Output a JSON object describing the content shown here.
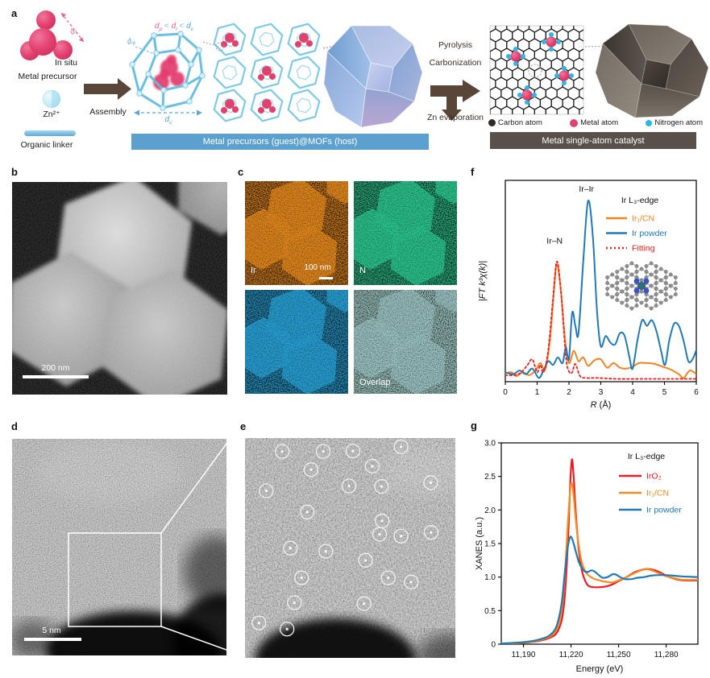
{
  "panels": {
    "a": {
      "label": "a",
      "metal_precursor": "Metal precursor",
      "zn_ion": "Zn²⁺",
      "organic_linker": "Organic linker",
      "in_situ": "In situ",
      "assembly": "Assembly",
      "size_inequality": [
        {
          "t": "d",
          "sub": "p",
          "italic": true,
          "color": "#e8608a"
        },
        {
          "t": " < ",
          "color": "#8fb9d9"
        },
        {
          "t": "d",
          "sub": "i",
          "italic": true,
          "color": "#e8608a"
        },
        {
          "t": " < ",
          "color": "#8fb9d9"
        },
        {
          "t": "d",
          "sub": "c",
          "italic": true,
          "color": "#4da3d8"
        }
      ],
      "d_pore": [
        {
          "t": "d",
          "sub": "p",
          "italic": true
        }
      ],
      "d_ion": [
        {
          "t": "d",
          "sub": "i",
          "italic": true
        }
      ],
      "d_cage": [
        {
          "t": "d",
          "sub": "c",
          "italic": true
        }
      ],
      "guest_host_banner": "Metal precursors (guest)@MOFs (host)",
      "banner_blue": "#5ba0cf",
      "banner_brown": "#57504b",
      "pyrolysis": "Pyrolysis",
      "carbonization": "Carbonization",
      "zn_evaporation": "Zn evaporation",
      "atom_legend": [
        {
          "name": "Carbon atom",
          "color": "#2d2a28"
        },
        {
          "name": "Metal atom",
          "color": "#e0416f"
        },
        {
          "name": "Nitrogen atom",
          "color": "#2bb7e8"
        }
      ],
      "sac_banner": "Metal single-atom catalyst"
    },
    "b": {
      "label": "b",
      "scale_bar": "200 nm"
    },
    "c": {
      "label": "c",
      "scale_bar": "100 nm",
      "maps": [
        {
          "name": "Ir",
          "color": "#ef8f1f"
        },
        {
          "name": "N",
          "color": "#2ecf96"
        },
        {
          "name": "",
          "color": "#2aa9e0"
        },
        {
          "name": "Overlap",
          "color": "#a8d4e4"
        }
      ]
    },
    "d": {
      "label": "d",
      "scale_bar": "5 nm"
    },
    "e": {
      "label": "e",
      "circles": [
        [
          0.177,
          0.061
        ],
        [
          0.372,
          0.061
        ],
        [
          0.513,
          0.059
        ],
        [
          0.742,
          0.04
        ],
        [
          0.314,
          0.144
        ],
        [
          0.605,
          0.128
        ],
        [
          0.494,
          0.218
        ],
        [
          0.649,
          0.22
        ],
        [
          0.883,
          0.203
        ],
        [
          0.101,
          0.24
        ],
        [
          0.296,
          0.337
        ],
        [
          0.652,
          0.377
        ],
        [
          0.64,
          0.438
        ],
        [
          0.742,
          0.446
        ],
        [
          0.885,
          0.429
        ],
        [
          0.216,
          0.501
        ],
        [
          0.384,
          0.515
        ],
        [
          0.573,
          0.556
        ],
        [
          0.269,
          0.636
        ],
        [
          0.681,
          0.636
        ],
        [
          0.79,
          0.655
        ],
        [
          0.235,
          0.749
        ],
        [
          0.566,
          0.753
        ],
        [
          0.066,
          0.841
        ],
        [
          0.2,
          0.869
        ]
      ]
    },
    "f": {
      "label": "f"
    },
    "g": {
      "label": "g"
    }
  },
  "chart_data": [
    {
      "id": "exafs",
      "type": "line",
      "legend_title": "Ir L₃-edge",
      "xlabel": "R (Å)",
      "ylabel": "|FT k³χ(k)|",
      "xlim": [
        0,
        6
      ],
      "ylim": [
        0,
        1.08
      ],
      "xticks": [
        {
          "v": 0,
          "label": "0"
        },
        {
          "v": 1,
          "label": "1"
        },
        {
          "v": 2,
          "label": "2"
        },
        {
          "v": 3,
          "label": "3"
        },
        {
          "v": 4,
          "label": "4"
        },
        {
          "v": 5,
          "label": "5"
        },
        {
          "v": 6,
          "label": "6"
        }
      ],
      "yticks": [],
      "annotations": [
        {
          "text": "Ir–N",
          "x": 1.55,
          "y": 0.74
        },
        {
          "text": "Ir–Ir",
          "x": 2.55,
          "y": 1.02
        }
      ],
      "series": [
        {
          "name": "Ir₁/CN",
          "color": "#f58220",
          "dash": null,
          "width": 2,
          "points": [
            [
              0,
              0.045
            ],
            [
              0.2,
              0.05
            ],
            [
              0.35,
              0.03
            ],
            [
              0.55,
              0.05
            ],
            [
              0.75,
              0.035
            ],
            [
              0.95,
              0.06
            ],
            [
              1.1,
              0.1
            ],
            [
              1.25,
              0.065
            ],
            [
              1.4,
              0.22
            ],
            [
              1.52,
              0.47
            ],
            [
              1.62,
              0.63
            ],
            [
              1.74,
              0.5
            ],
            [
              1.88,
              0.22
            ],
            [
              2.0,
              0.1
            ],
            [
              2.15,
              0.165
            ],
            [
              2.3,
              0.11
            ],
            [
              2.45,
              0.13
            ],
            [
              2.6,
              0.085
            ],
            [
              2.8,
              0.115
            ],
            [
              3.0,
              0.12
            ],
            [
              3.2,
              0.075
            ],
            [
              3.4,
              0.1
            ],
            [
              3.6,
              0.075
            ],
            [
              3.8,
              0.07
            ],
            [
              4.0,
              0.08
            ],
            [
              4.2,
              0.1
            ],
            [
              4.45,
              0.1
            ],
            [
              4.7,
              0.095
            ],
            [
              4.95,
              0.08
            ],
            [
              5.2,
              0.065
            ],
            [
              5.45,
              0.04
            ],
            [
              5.6,
              0.02
            ],
            [
              5.8,
              0.06
            ],
            [
              6,
              0.04
            ]
          ]
        },
        {
          "name": "Ir powder",
          "color": "#2179b5",
          "dash": null,
          "width": 2,
          "points": [
            [
              0,
              0.05
            ],
            [
              0.25,
              0.04
            ],
            [
              0.45,
              0.06
            ],
            [
              0.65,
              0.04
            ],
            [
              0.85,
              0.07
            ],
            [
              1.05,
              0.02
            ],
            [
              1.2,
              0.06
            ],
            [
              1.35,
              0.11
            ],
            [
              1.5,
              0.09
            ],
            [
              1.65,
              0.13
            ],
            [
              1.8,
              0.1
            ],
            [
              1.9,
              0.185
            ],
            [
              2.0,
              0.12
            ],
            [
              2.1,
              0.37
            ],
            [
              2.2,
              0.3
            ],
            [
              2.3,
              0.26
            ],
            [
              2.45,
              0.65
            ],
            [
              2.6,
              0.97
            ],
            [
              2.75,
              0.78
            ],
            [
              2.88,
              0.38
            ],
            [
              3.0,
              0.19
            ],
            [
              3.15,
              0.245
            ],
            [
              3.3,
              0.21
            ],
            [
              3.45,
              0.2
            ],
            [
              3.6,
              0.26
            ],
            [
              3.75,
              0.245
            ],
            [
              3.9,
              0.13
            ],
            [
              4.0,
              0.07
            ],
            [
              4.15,
              0.22
            ],
            [
              4.3,
              0.33
            ],
            [
              4.45,
              0.3
            ],
            [
              4.6,
              0.33
            ],
            [
              4.75,
              0.27
            ],
            [
              4.9,
              0.16
            ],
            [
              5.02,
              0.09
            ],
            [
              5.15,
              0.22
            ],
            [
              5.3,
              0.31
            ],
            [
              5.45,
              0.3
            ],
            [
              5.6,
              0.22
            ],
            [
              5.75,
              0.11
            ],
            [
              5.88,
              0.12
            ],
            [
              6,
              0.17
            ]
          ]
        },
        {
          "name": "Fitting",
          "color": "#ee2222",
          "dash": "2.5,3",
          "width": 1.8,
          "points": [
            [
              0,
              0.035
            ],
            [
              0.3,
              0.035
            ],
            [
              0.5,
              0.05
            ],
            [
              0.7,
              0.09
            ],
            [
              0.85,
              0.12
            ],
            [
              1.0,
              0.05
            ],
            [
              1.1,
              0.09
            ],
            [
              1.2,
              0.05
            ],
            [
              1.35,
              0.17
            ],
            [
              1.5,
              0.45
            ],
            [
              1.62,
              0.645
            ],
            [
              1.75,
              0.48
            ],
            [
              1.9,
              0.14
            ],
            [
              2.0,
              0.055
            ],
            [
              2.1,
              0.05
            ],
            [
              2.2,
              0.095
            ],
            [
              2.35,
              0.03
            ],
            [
              2.55,
              0.02
            ],
            [
              2.9,
              0.02
            ],
            [
              3.5,
              0.015
            ],
            [
              4.5,
              0.015
            ],
            [
              5.5,
              0.015
            ],
            [
              6,
              0.015
            ]
          ]
        }
      ]
    },
    {
      "id": "xanes",
      "type": "line",
      "legend_title": "Ir L₃-edge",
      "xlabel": "Energy (eV)",
      "ylabel": "XANES (a.u.)",
      "xlim": [
        11176,
        11300
      ],
      "ylim": [
        0,
        3.0
      ],
      "xticks": [
        {
          "v": 11190,
          "label": "11,190"
        },
        {
          "v": 11220,
          "label": "11,220"
        },
        {
          "v": 11250,
          "label": "11,250"
        },
        {
          "v": 11280,
          "label": "11,280"
        }
      ],
      "yticks": [
        {
          "v": 0,
          "label": "0"
        },
        {
          "v": 0.5,
          "label": "0.5"
        },
        {
          "v": 1,
          "label": "1.0"
        },
        {
          "v": 1.5,
          "label": "1.5"
        },
        {
          "v": 2,
          "label": "2.0"
        },
        {
          "v": 2.5,
          "label": "2.5"
        },
        {
          "v": 3,
          "label": "3.0"
        }
      ],
      "annotations": [],
      "series": [
        {
          "name": "IrO₂",
          "color": "#ed1c24",
          "dash": null,
          "width": 2.2,
          "points": [
            [
              11176,
              0.01
            ],
            [
              11190,
              0.02
            ],
            [
              11200,
              0.05
            ],
            [
              11207,
              0.1
            ],
            [
              11211,
              0.17
            ],
            [
              11214,
              0.35
            ],
            [
              11216,
              0.7
            ],
            [
              11218,
              1.5
            ],
            [
              11219.5,
              2.4
            ],
            [
              11220.5,
              2.75
            ],
            [
              11221.5,
              2.55
            ],
            [
              11223,
              1.95
            ],
            [
              11225,
              1.38
            ],
            [
              11227,
              1.08
            ],
            [
              11229,
              0.94
            ],
            [
              11231,
              0.87
            ],
            [
              11234,
              0.85
            ],
            [
              11238,
              0.85
            ],
            [
              11242,
              0.86
            ],
            [
              11246,
              0.89
            ],
            [
              11250,
              0.94
            ],
            [
              11255,
              1.0
            ],
            [
              11260,
              1.07
            ],
            [
              11265,
              1.11
            ],
            [
              11269,
              1.12
            ],
            [
              11273,
              1.1
            ],
            [
              11277,
              1.06
            ],
            [
              11281,
              1.01
            ],
            [
              11286,
              0.97
            ],
            [
              11291,
              0.95
            ],
            [
              11300,
              0.95
            ]
          ]
        },
        {
          "name": "Ir₁/CN",
          "color": "#f68b1f",
          "dash": null,
          "width": 2.2,
          "points": [
            [
              11176,
              0.01
            ],
            [
              11190,
              0.02
            ],
            [
              11200,
              0.06
            ],
            [
              11207,
              0.12
            ],
            [
              11211,
              0.22
            ],
            [
              11214,
              0.5
            ],
            [
              11216,
              1.0
            ],
            [
              11218,
              1.8
            ],
            [
              11219.5,
              2.3
            ],
            [
              11220.5,
              2.4
            ],
            [
              11221.5,
              2.25
            ],
            [
              11223,
              1.85
            ],
            [
              11225,
              1.45
            ],
            [
              11227,
              1.2
            ],
            [
              11230,
              1.05
            ],
            [
              11234,
              0.98
            ],
            [
              11238,
              0.95
            ],
            [
              11242,
              0.93
            ],
            [
              11246,
              0.92
            ],
            [
              11250,
              0.95
            ],
            [
              11255,
              1.0
            ],
            [
              11260,
              1.06
            ],
            [
              11264,
              1.1
            ],
            [
              11267,
              1.12
            ],
            [
              11271,
              1.1
            ],
            [
              11275,
              1.06
            ],
            [
              11279,
              1.02
            ],
            [
              11284,
              0.99
            ],
            [
              11290,
              0.96
            ],
            [
              11300,
              0.96
            ]
          ]
        },
        {
          "name": "Ir powder",
          "color": "#2179b5",
          "dash": null,
          "width": 2.2,
          "points": [
            [
              11176,
              0.01
            ],
            [
              11190,
              0.03
            ],
            [
              11200,
              0.07
            ],
            [
              11207,
              0.14
            ],
            [
              11211,
              0.28
            ],
            [
              11214,
              0.6
            ],
            [
              11216,
              1.05
            ],
            [
              11218,
              1.45
            ],
            [
              11219.5,
              1.6
            ],
            [
              11221,
              1.55
            ],
            [
              11223,
              1.38
            ],
            [
              11225,
              1.22
            ],
            [
              11227,
              1.13
            ],
            [
              11229,
              1.08
            ],
            [
              11231,
              1.08
            ],
            [
              11233,
              1.1
            ],
            [
              11235,
              1.08
            ],
            [
              11238,
              1.02
            ],
            [
              11240,
              0.99
            ],
            [
              11243,
              1.0
            ],
            [
              11246,
              1.04
            ],
            [
              11248,
              1.04
            ],
            [
              11251,
              1.0
            ],
            [
              11254,
              0.97
            ],
            [
              11258,
              0.97
            ],
            [
              11262,
              0.99
            ],
            [
              11266,
              1.0
            ],
            [
              11270,
              1.02
            ],
            [
              11275,
              1.03
            ],
            [
              11280,
              1.03
            ],
            [
              11285,
              1.02
            ],
            [
              11290,
              1.01
            ],
            [
              11300,
              1.0
            ]
          ]
        }
      ]
    }
  ]
}
